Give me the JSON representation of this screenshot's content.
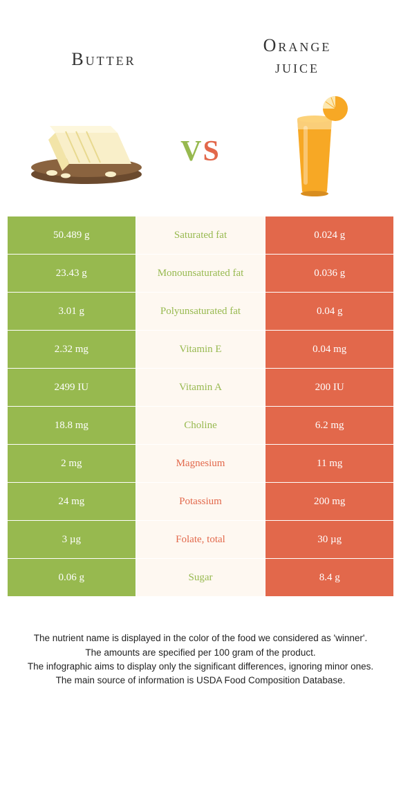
{
  "colors": {
    "green": "#97b94f",
    "orange": "#e2684b",
    "mid_bg": "#fef8f1",
    "text_dark": "#333333",
    "white": "#ffffff"
  },
  "header": {
    "left_title": "Butter",
    "right_title_line1": "Orange",
    "right_title_line2": "juice",
    "vs": "vs"
  },
  "rows": [
    {
      "left": "50.489 g",
      "label": "Saturated fat",
      "right": "0.024 g",
      "winner": "left"
    },
    {
      "left": "23.43 g",
      "label": "Monounsaturated fat",
      "right": "0.036 g",
      "winner": "left"
    },
    {
      "left": "3.01 g",
      "label": "Polyunsaturated fat",
      "right": "0.04 g",
      "winner": "left"
    },
    {
      "left": "2.32 mg",
      "label": "Vitamin E",
      "right": "0.04 mg",
      "winner": "left"
    },
    {
      "left": "2499 IU",
      "label": "Vitamin A",
      "right": "200 IU",
      "winner": "left"
    },
    {
      "left": "18.8 mg",
      "label": "Choline",
      "right": "6.2 mg",
      "winner": "left"
    },
    {
      "left": "2 mg",
      "label": "Magnesium",
      "right": "11 mg",
      "winner": "right"
    },
    {
      "left": "24 mg",
      "label": "Potassium",
      "right": "200 mg",
      "winner": "right"
    },
    {
      "left": "3 µg",
      "label": "Folate, total",
      "right": "30 µg",
      "winner": "right"
    },
    {
      "left": "0.06 g",
      "label": "Sugar",
      "right": "8.4 g",
      "winner": "left"
    }
  ],
  "footer": {
    "line1": "The nutrient name is displayed in the color of the food we considered as 'winner'.",
    "line2": "The amounts are specified per 100 gram of the product.",
    "line3": "The infographic aims to display only the significant differences, ignoring minor ones.",
    "line4": "The main source of information is USDA Food Composition Database."
  }
}
